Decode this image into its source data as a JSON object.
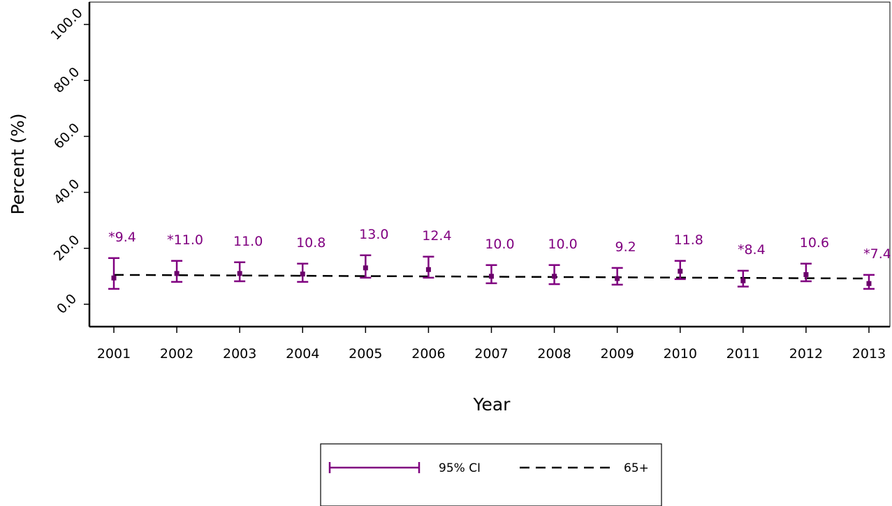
{
  "chart_data": {
    "type": "line",
    "xlabel": "Year",
    "ylabel": "Percent (%)",
    "ylim": [
      -8,
      108
    ],
    "yticks": [
      "0.0",
      "20.0",
      "40.0",
      "60.0",
      "80.0",
      "100.0"
    ],
    "ytick_values": [
      0,
      20,
      40,
      60,
      80,
      100
    ],
    "categories": [
      "2001",
      "2002",
      "2003",
      "2004",
      "2005",
      "2006",
      "2007",
      "2008",
      "2009",
      "2010",
      "2011",
      "2012",
      "2013"
    ],
    "series": [
      {
        "name": "95% CI",
        "kind": "point-with-error-bars",
        "color": "#800080",
        "values": [
          9.4,
          11.0,
          11.0,
          10.8,
          13.0,
          12.4,
          10.0,
          10.0,
          9.2,
          11.8,
          8.4,
          10.6,
          7.4
        ],
        "ci_lower": [
          5.5,
          8.0,
          8.2,
          8.0,
          9.5,
          9.5,
          7.5,
          7.2,
          7.0,
          9.0,
          6.3,
          8.2,
          5.5
        ],
        "ci_upper": [
          16.5,
          15.5,
          15.0,
          14.5,
          17.5,
          17.0,
          14.0,
          14.0,
          13.0,
          15.5,
          12.0,
          14.5,
          10.5
        ]
      },
      {
        "name": "65+",
        "kind": "dashed-trend-line",
        "color": "#000000",
        "start_value": 10.5,
        "end_value": 9.2
      }
    ],
    "data_labels": [
      "*9.4",
      "*11.0",
      "11.0",
      "10.8",
      "13.0",
      "12.4",
      "10.0",
      "10.0",
      "9.2",
      "11.8",
      "*8.4",
      "10.6",
      "*7.4"
    ],
    "legend": {
      "placement": "bottom-center",
      "entries": [
        "95% CI",
        "65+"
      ]
    },
    "grid": false
  }
}
